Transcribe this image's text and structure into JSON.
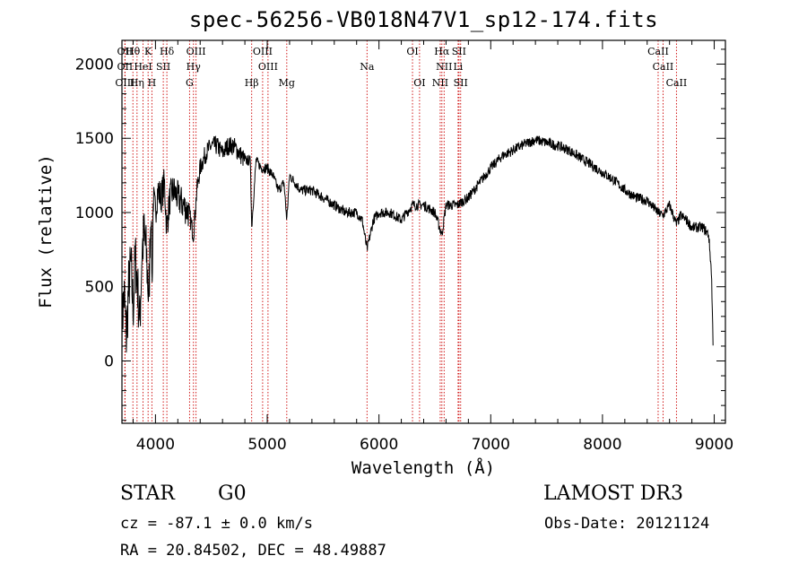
{
  "chart_data": {
    "type": "line",
    "title": "spec-56256-VB018N47V1_sp12-174.fits",
    "xlabel": "Wavelength (Å)",
    "ylabel": "Flux (relative)",
    "xlim": [
      3700,
      9100
    ],
    "ylim": [
      -420,
      2160
    ],
    "xticks": [
      4000,
      5000,
      6000,
      7000,
      8000,
      9000
    ],
    "yticks": [
      0,
      500,
      1000,
      1500,
      2000
    ],
    "line_color": "#cc0000",
    "spectrum_anchors": {
      "x": [
        3700,
        3720,
        3740,
        3760,
        3780,
        3800,
        3820,
        3840,
        3860,
        3880,
        3900,
        3920,
        3940,
        3960,
        3970,
        3980,
        4000,
        4020,
        4050,
        4080,
        4100,
        4130,
        4160,
        4200,
        4250,
        4300,
        4340,
        4370,
        4400,
        4450,
        4500,
        4550,
        4600,
        4650,
        4700,
        4750,
        4800,
        4850,
        4861,
        4900,
        4950,
        5000,
        5050,
        5100,
        5150,
        5175,
        5200,
        5250,
        5300,
        5400,
        5500,
        5600,
        5700,
        5800,
        5850,
        5893,
        5950,
        6000,
        6100,
        6200,
        6300,
        6400,
        6500,
        6563,
        6600,
        6700,
        6800,
        6900,
        7000,
        7100,
        7200,
        7300,
        7400,
        7500,
        7600,
        7700,
        7800,
        7900,
        8000,
        8100,
        8200,
        8300,
        8400,
        8498,
        8542,
        8600,
        8662,
        8700,
        8750,
        8800,
        8850,
        8900,
        8950,
        8975,
        8990
      ],
      "y": [
        250,
        450,
        150,
        500,
        650,
        350,
        700,
        500,
        250,
        750,
        850,
        700,
        400,
        1050,
        500,
        1100,
        1000,
        1150,
        1100,
        1200,
        900,
        1100,
        1150,
        1100,
        1050,
        1000,
        850,
        1150,
        1300,
        1400,
        1450,
        1450,
        1400,
        1450,
        1450,
        1400,
        1350,
        1350,
        900,
        1350,
        1300,
        1300,
        1250,
        1150,
        1200,
        950,
        1250,
        1200,
        1150,
        1150,
        1100,
        1050,
        1000,
        1000,
        950,
        750,
        950,
        1000,
        1000,
        950,
        1050,
        1050,
        1000,
        850,
        1050,
        1050,
        1100,
        1200,
        1300,
        1380,
        1420,
        1460,
        1490,
        1470,
        1450,
        1420,
        1370,
        1320,
        1270,
        1220,
        1150,
        1100,
        1080,
        1000,
        980,
        1050,
        920,
        980,
        950,
        900,
        900,
        900,
        850,
        600,
        100
      ]
    },
    "lines": [
      {
        "label": "Hθ",
        "wavelength": 3798,
        "row": 1
      },
      {
        "label": "OII",
        "wavelength": 3727,
        "row": 1
      },
      {
        "label": "K",
        "wavelength": 3934,
        "row": 1
      },
      {
        "label": "Hδ",
        "wavelength": 4102,
        "row": 1
      },
      {
        "label": "OIII",
        "wavelength": 4363,
        "row": 1
      },
      {
        "label": "OIII",
        "wavelength": 4959,
        "row": 1
      },
      {
        "label": "OI",
        "wavelength": 6300,
        "row": 1
      },
      {
        "label": "Hα",
        "wavelength": 6563,
        "row": 1
      },
      {
        "label": "SII",
        "wavelength": 6716,
        "row": 1
      },
      {
        "label": "CaII",
        "wavelength": 8498,
        "row": 1
      },
      {
        "label": "OII",
        "wavelength": 3727,
        "row": 2
      },
      {
        "label": "HeI",
        "wavelength": 3889,
        "row": 2
      },
      {
        "label": "SII",
        "wavelength": 4070,
        "row": 2
      },
      {
        "label": "Hγ",
        "wavelength": 4340,
        "row": 2
      },
      {
        "label": "OIII",
        "wavelength": 5007,
        "row": 2
      },
      {
        "label": "Na",
        "wavelength": 5893,
        "row": 2
      },
      {
        "label": "NII",
        "wavelength": 6583,
        "row": 2
      },
      {
        "label": "Li",
        "wavelength": 6708,
        "row": 2
      },
      {
        "label": "CaII",
        "wavelength": 8542,
        "row": 2
      },
      {
        "label": "OIII",
        "wavelength": 3727,
        "row": 3
      },
      {
        "label": "Hη",
        "wavelength": 3835,
        "row": 3
      },
      {
        "label": "H",
        "wavelength": 3968,
        "row": 3
      },
      {
        "label": "G",
        "wavelength": 4305,
        "row": 3
      },
      {
        "label": "Hβ",
        "wavelength": 4861,
        "row": 3
      },
      {
        "label": "Mg",
        "wavelength": 5175,
        "row": 3
      },
      {
        "label": "OI",
        "wavelength": 6363,
        "row": 3
      },
      {
        "label": "NII",
        "wavelength": 6548,
        "row": 3
      },
      {
        "label": "SII",
        "wavelength": 6731,
        "row": 3
      },
      {
        "label": "CaII",
        "wavelength": 8662,
        "row": 3
      }
    ]
  },
  "info": {
    "class": "STAR",
    "subclass": "G0",
    "survey": "LAMOST DR3",
    "cz": "cz = -87.1 ± 0.0 km/s",
    "obs_date": "Obs-Date: 20121124",
    "coords": "RA =  20.84502, DEC =  48.49887"
  }
}
